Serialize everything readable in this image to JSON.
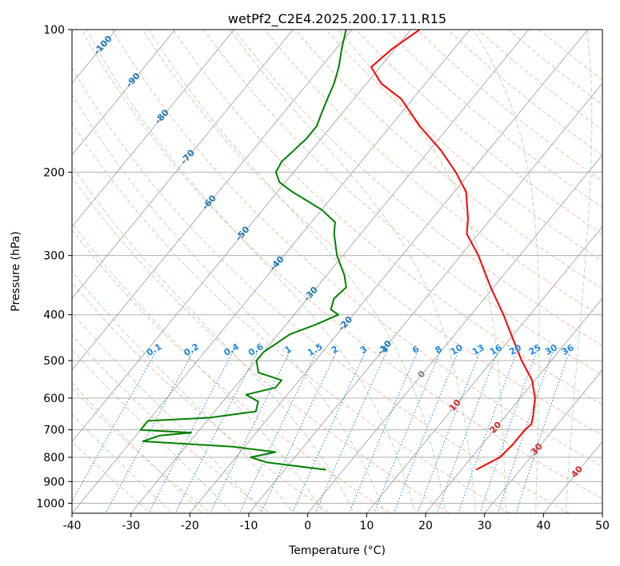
{
  "chart_data": {
    "type": "line",
    "title": "wetPf2_C2E4.2025.200.17.11.R15",
    "xlabel": "Temperature (°C)",
    "ylabel": "Pressure (hPa)",
    "xlim": [
      -40,
      50
    ],
    "ylim": [
      1050,
      100
    ],
    "y_scale": "log",
    "skew_t": true,
    "grid": true,
    "x_ticks": [
      "-40",
      "-30",
      "-20",
      "-10",
      "0",
      "10",
      "20",
      "30",
      "40",
      "50"
    ],
    "y_ticks": [
      "100",
      "200",
      "300",
      "400",
      "500",
      "600",
      "700",
      "800",
      "900",
      "1000"
    ],
    "series": [
      {
        "color": "#ff0000",
        "points": [
          {
            "p": 850,
            "t": 22.5
          },
          {
            "p": 800,
            "t": 24.8
          },
          {
            "p": 750,
            "t": 25.2
          },
          {
            "p": 700,
            "t": 25.2
          },
          {
            "p": 680,
            "t": 25.5
          },
          {
            "p": 650,
            "t": 24.5
          },
          {
            "p": 600,
            "t": 22.5
          },
          {
            "p": 550,
            "t": 19.5
          },
          {
            "p": 500,
            "t": 15.0
          },
          {
            "p": 450,
            "t": 10.5
          },
          {
            "p": 400,
            "t": 5.5
          },
          {
            "p": 350,
            "t": -0.5
          },
          {
            "p": 300,
            "t": -7.0
          },
          {
            "p": 270,
            "t": -12.0
          },
          {
            "p": 250,
            "t": -14.0
          },
          {
            "p": 220,
            "t": -18.0
          },
          {
            "p": 200,
            "t": -22.5
          },
          {
            "p": 180,
            "t": -28.0
          },
          {
            "p": 160,
            "t": -35.0
          },
          {
            "p": 140,
            "t": -42.0
          },
          {
            "p": 130,
            "t": -47.5
          },
          {
            "p": 120,
            "t": -51.5
          },
          {
            "p": 110,
            "t": -50.5
          },
          {
            "p": 100,
            "t": -48.5
          }
        ]
      },
      {
        "color": "#008000",
        "points": [
          {
            "p": 850,
            "t": -3.0
          },
          {
            "p": 820,
            "t": -14.0
          },
          {
            "p": 800,
            "t": -17.5
          },
          {
            "p": 780,
            "t": -14.0
          },
          {
            "p": 760,
            "t": -22.0
          },
          {
            "p": 740,
            "t": -38.0
          },
          {
            "p": 720,
            "t": -36.0
          },
          {
            "p": 710,
            "t": -31.0
          },
          {
            "p": 700,
            "t": -40.0
          },
          {
            "p": 670,
            "t": -40.0
          },
          {
            "p": 660,
            "t": -30.0
          },
          {
            "p": 640,
            "t": -23.0
          },
          {
            "p": 610,
            "t": -24.0
          },
          {
            "p": 590,
            "t": -27.0
          },
          {
            "p": 570,
            "t": -23.0
          },
          {
            "p": 550,
            "t": -23.0
          },
          {
            "p": 530,
            "t": -28.0
          },
          {
            "p": 500,
            "t": -30.0
          },
          {
            "p": 480,
            "t": -30.0
          },
          {
            "p": 460,
            "t": -29.0
          },
          {
            "p": 440,
            "t": -28.0
          },
          {
            "p": 420,
            "t": -25.0
          },
          {
            "p": 400,
            "t": -22.5
          },
          {
            "p": 390,
            "t": -24.5
          },
          {
            "p": 370,
            "t": -25.5
          },
          {
            "p": 350,
            "t": -25.0
          },
          {
            "p": 330,
            "t": -27.0
          },
          {
            "p": 300,
            "t": -31.0
          },
          {
            "p": 270,
            "t": -34.5
          },
          {
            "p": 255,
            "t": -36.0
          },
          {
            "p": 240,
            "t": -40.0
          },
          {
            "p": 220,
            "t": -47.5
          },
          {
            "p": 210,
            "t": -51.0
          },
          {
            "p": 200,
            "t": -53.0
          },
          {
            "p": 190,
            "t": -53.5
          },
          {
            "p": 180,
            "t": -53.0
          },
          {
            "p": 170,
            "t": -52.5
          },
          {
            "p": 160,
            "t": -52.5
          },
          {
            "p": 150,
            "t": -53.5
          },
          {
            "p": 140,
            "t": -54.5
          },
          {
            "p": 130,
            "t": -55.5
          },
          {
            "p": 120,
            "t": -57.0
          },
          {
            "p": 110,
            "t": -59.0
          },
          {
            "p": 100,
            "t": -61.0
          }
        ]
      }
    ],
    "dry_adiabat_labels": [
      "-100",
      "-90",
      "-80",
      "-70",
      "-60",
      "-50",
      "-40",
      "-30",
      "-20",
      "-10",
      "0",
      "10",
      "20",
      "30",
      "40"
    ],
    "mixing_ratio_labels": [
      "0.1",
      "0.2",
      "0.4",
      "0.6",
      "1",
      "1.5",
      "2",
      "3",
      "4",
      "6",
      "8",
      "10",
      "13",
      "16",
      "20",
      "25",
      "30",
      "36"
    ],
    "colors": {
      "temperature": "#ff0000",
      "dewpoint": "#008000",
      "dry_adiabat": "#f4a582",
      "moist_adiabat": "#8fce8f",
      "mixing_ratio": "#1e88e5",
      "isotherm": "#999999",
      "dry_adiabat_label": "#d62728",
      "cold_label": "#1f77b4",
      "zero_label": "#808080"
    }
  }
}
